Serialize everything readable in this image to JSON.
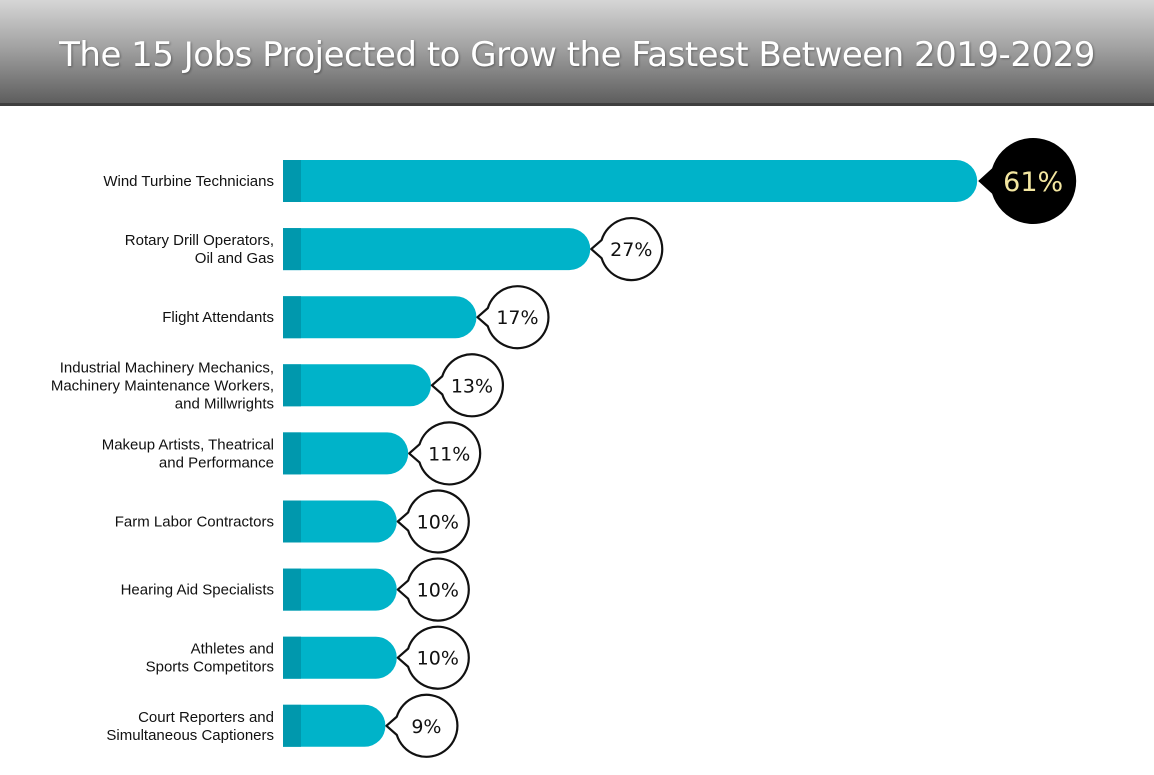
{
  "title": "The 15 Jobs Projected to Grow the Fastest Between 2019-2029",
  "colors": {
    "bar": "#00b3c9",
    "bar_stub": "#0098ad",
    "bubble_fill": "#ffffff",
    "bubble_stroke": "#111111",
    "highlight_fill": "#000000",
    "highlight_text": "#f3e6a0"
  },
  "chart_data": {
    "type": "bar",
    "orientation": "horizontal",
    "title": "The 15 Jobs Projected to Grow the Fastest Between 2019-2029",
    "categories": [
      [
        "Wind Turbine Technicians"
      ],
      [
        "Rotary Drill Operators,",
        "Oil and Gas"
      ],
      [
        "Flight Attendants"
      ],
      [
        "Industrial Machinery Mechanics,",
        "Machinery Maintenance Workers,",
        "and Millwrights"
      ],
      [
        "Makeup Artists, Theatrical",
        "and Performance"
      ],
      [
        "Farm Labor Contractors"
      ],
      [
        "Hearing Aid Specialists"
      ],
      [
        "Athletes and",
        "Sports Competitors"
      ],
      [
        "Court Reporters and",
        "Simultaneous Captioners"
      ]
    ],
    "values": [
      61,
      27,
      17,
      13,
      11,
      10,
      10,
      10,
      9
    ],
    "value_labels": [
      "61%",
      "27%",
      "17%",
      "13%",
      "11%",
      "10%",
      "10%",
      "10%",
      "9%"
    ],
    "highlight_index": 0,
    "xlim": [
      0,
      65
    ],
    "xlabel": "",
    "ylabel": "",
    "grid": false,
    "legend": false
  }
}
